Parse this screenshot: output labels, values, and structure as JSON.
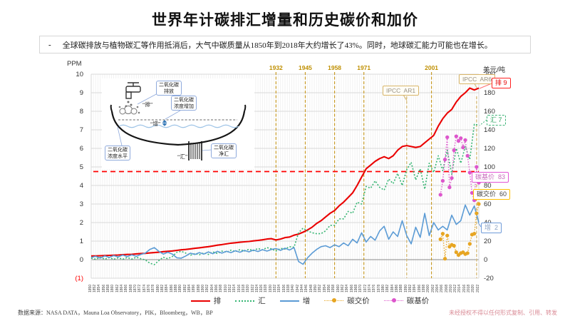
{
  "title": "世界年计碳排汇增量和历史碳价和加价",
  "note": {
    "bullet": "-",
    "text": "全球碳排放与植物碳汇等作用抵消后，大气中碳质量从1850年到2018年大约增长了43%。同时，地球碳汇能力可能也在增长。"
  },
  "axes": {
    "left_title": "PPM",
    "right_title": "美元/吨",
    "left_ticks": [
      "10",
      "9",
      "8",
      "7",
      "6",
      "5",
      "4",
      "3",
      "2",
      "1",
      "0",
      "(1)"
    ],
    "right_ticks": [
      "200",
      "180",
      "160",
      "140",
      "120",
      "100",
      "80",
      "60",
      "40",
      "20",
      "0",
      "-20"
    ]
  },
  "chart_data": {
    "type": "line",
    "x_label_step_years": 2,
    "x_years": [
      1850,
      1852,
      1854,
      1856,
      1858,
      1860,
      1862,
      1864,
      1866,
      1868,
      1870,
      1872,
      1874,
      1876,
      1878,
      1880,
      1882,
      1884,
      1886,
      1888,
      1890,
      1892,
      1894,
      1896,
      1898,
      1900,
      1902,
      1904,
      1906,
      1908,
      1910,
      1912,
      1914,
      1916,
      1918,
      1920,
      1922,
      1924,
      1926,
      1928,
      1930,
      1932,
      1934,
      1936,
      1938,
      1940,
      1942,
      1944,
      1946,
      1948,
      1950,
      1952,
      1954,
      1956,
      1958,
      1960,
      1962,
      1964,
      1966,
      1968,
      1970,
      1972,
      1974,
      1976,
      1978,
      1980,
      1982,
      1984,
      1986,
      1988,
      1990,
      1992,
      1994,
      1996,
      1998,
      2000,
      2002,
      2004,
      2006,
      2008,
      2010,
      2012,
      2014,
      2016,
      2018,
      2020,
      2022
    ],
    "left_axis": {
      "label": "PPM",
      "min": -1,
      "max": 10
    },
    "right_axis": {
      "label": "美元/吨",
      "min": -20,
      "max": 200
    },
    "series": [
      {
        "name": "排",
        "axis": "left",
        "color": "#ea0000",
        "style": "solid",
        "values": [
          0.2,
          0.2,
          0.21,
          0.22,
          0.23,
          0.24,
          0.25,
          0.27,
          0.28,
          0.29,
          0.31,
          0.33,
          0.34,
          0.36,
          0.38,
          0.4,
          0.43,
          0.45,
          0.47,
          0.5,
          0.53,
          0.55,
          0.58,
          0.61,
          0.64,
          0.67,
          0.7,
          0.74,
          0.78,
          0.81,
          0.85,
          0.89,
          0.91,
          0.94,
          0.96,
          0.98,
          1.01,
          1.04,
          1.07,
          1.11,
          1.13,
          1.06,
          1.11,
          1.19,
          1.22,
          1.32,
          1.38,
          1.48,
          1.6,
          1.75,
          1.95,
          2.1,
          2.3,
          2.5,
          2.65,
          2.9,
          3.1,
          3.35,
          3.6,
          4.0,
          4.45,
          4.9,
          5.1,
          5.3,
          5.45,
          5.55,
          5.45,
          5.6,
          5.9,
          6.1,
          6.15,
          6.1,
          6.05,
          6.1,
          6.3,
          6.5,
          6.7,
          7.2,
          7.6,
          7.9,
          8.1,
          8.5,
          8.8,
          9.0,
          9.25,
          9.15,
          9.25
        ]
      },
      {
        "name": "汇",
        "axis": "left",
        "color": "#35b572",
        "style": "dotted",
        "values": [
          0.08,
          0.02,
          0.13,
          0.02,
          0.11,
          0.02,
          0.1,
          0.02,
          0.12,
          0.03,
          0.13,
          0.05,
          -0.01,
          -0.19,
          -0.27,
          -0.05,
          0.13,
          0.05,
          0.17,
          0.4,
          0.45,
          0.35,
          0.23,
          0.33,
          0.26,
          0.37,
          0.28,
          0.42,
          0.33,
          0.46,
          0.4,
          0.51,
          0.43,
          0.54,
          0.46,
          0.56,
          0.49,
          0.6,
          0.53,
          0.65,
          0.58,
          0.46,
          0.61,
          0.57,
          0.7,
          0.67,
          1.45,
          1.7,
          1.55,
          1.45,
          1.4,
          1.4,
          1.55,
          1.85,
          1.85,
          2.2,
          2.2,
          2.6,
          2.5,
          3.1,
          3.0,
          3.95,
          3.85,
          4.25,
          3.9,
          3.75,
          4.35,
          4.1,
          4.65,
          4.0,
          4.85,
          5.25,
          4.3,
          4.9,
          3.8,
          5.2,
          4.7,
          5.6,
          4.8,
          5.9,
          4.6,
          6.0,
          5.2,
          6.1,
          5.4,
          7.3,
          7.25
        ]
      },
      {
        "name": "增",
        "axis": "left",
        "color": "#5b9bd5",
        "style": "solid",
        "values": [
          0.12,
          0.18,
          0.08,
          0.2,
          0.12,
          0.22,
          0.15,
          0.25,
          0.16,
          0.26,
          0.18,
          0.28,
          0.35,
          0.55,
          0.65,
          0.45,
          0.3,
          0.4,
          0.3,
          0.1,
          0.08,
          0.2,
          0.35,
          0.28,
          0.38,
          0.3,
          0.42,
          0.32,
          0.45,
          0.35,
          0.45,
          0.38,
          0.48,
          0.4,
          0.5,
          0.42,
          0.52,
          0.44,
          0.54,
          0.46,
          0.55,
          0.6,
          0.5,
          0.62,
          0.52,
          0.65,
          -0.1,
          -0.25,
          0.1,
          0.35,
          0.55,
          0.7,
          0.75,
          0.65,
          0.8,
          0.7,
          0.9,
          0.75,
          1.1,
          0.9,
          1.45,
          0.95,
          1.25,
          1.05,
          1.55,
          1.8,
          1.1,
          1.5,
          1.25,
          2.1,
          1.3,
          0.85,
          1.75,
          1.2,
          2.5,
          1.3,
          2.0,
          1.6,
          1.8,
          1.6,
          2.4,
          1.9,
          2.1,
          2.95,
          2.4,
          2.9,
          2.0
        ]
      },
      {
        "name": "碳交价",
        "axis": "right",
        "color": "#e7a521",
        "style": "dotted-marker",
        "x": [
          2005,
          2006,
          2007,
          2008,
          2009,
          2010,
          2011,
          2012,
          2013,
          2014,
          2015,
          2016,
          2017,
          2018,
          2019,
          2020,
          2021,
          2022
        ],
        "values": [
          22,
          28,
          1,
          26,
          14,
          16,
          15,
          8,
          5,
          7,
          8,
          6,
          7,
          17,
          27,
          28,
          50,
          60
        ]
      },
      {
        "name": "碳基价",
        "axis": "right",
        "color": "#dd55cc",
        "style": "dotted-marker",
        "x": [
          2005,
          2006,
          2007,
          2008,
          2009,
          2010,
          2011,
          2012,
          2013,
          2014,
          2015,
          2016,
          2017,
          2018,
          2019,
          2020,
          2021,
          2022
        ],
        "values": [
          70,
          85,
          108,
          132,
          78,
          88,
          118,
          133,
          128,
          131,
          121,
          129,
          112,
          94,
          72,
          64,
          100,
          83
        ]
      }
    ],
    "reference_line": {
      "axis": "left",
      "value": 4.75,
      "color": "#ff0000",
      "style": "dashed"
    },
    "event_lines": [
      {
        "year": 1932,
        "label": "1932"
      },
      {
        "year": 1945,
        "label": "1945"
      },
      {
        "year": 1958,
        "label": "1958"
      },
      {
        "year": 1971,
        "label": "1971"
      },
      {
        "year": 2001,
        "label": "2001"
      }
    ],
    "grid": "on",
    "legend_position": "bottom"
  },
  "annotations": {
    "ipcc": [
      {
        "year": 1990,
        "label": "IPCC  AR1"
      },
      {
        "year": 2021,
        "label": "IPCC  AR6"
      }
    ],
    "callouts": [
      {
        "text": "排 9"
      },
      {
        "text": "汇 7"
      },
      {
        "text": "碳基价  83"
      },
      {
        "text": "碳交价  60"
      },
      {
        "text": "增  2"
      }
    ]
  },
  "inset": {
    "emission_box": [
      "二氧化碳",
      "排放"
    ],
    "emission_tag": "“排”",
    "increase_box": [
      "二氧化碳",
      "浓度增加"
    ],
    "increase_tag": "“增”",
    "level_box": [
      "二氧化碳",
      "浓度水平"
    ],
    "sink_box": [
      "二氧化碳",
      "净汇"
    ],
    "sink_tag": "“汇”"
  },
  "legend": [
    {
      "label": "排"
    },
    {
      "label": "汇"
    },
    {
      "label": "增"
    },
    {
      "label": "碳交价"
    },
    {
      "label": "碳基价"
    }
  ],
  "footer": {
    "source": "数据来源：NASA DATA，Mauna Loa Observatory，PIK，Bloomberg，WB，BP",
    "watermark": "未经授权不得以任何形式复制、引用、转发"
  }
}
